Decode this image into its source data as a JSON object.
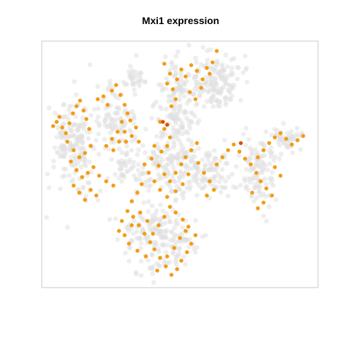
{
  "chart_data": {
    "type": "scatter",
    "title": "Mxi1 expression",
    "xlabel": "",
    "ylabel": "",
    "axes_visible": false,
    "grid": false,
    "legend": "none",
    "colors": {
      "background_cells": "#e0e0e0",
      "expressing_cells": "#f39c12",
      "high_expressing_cells": "#d35400",
      "frame": "#c8c8c8"
    },
    "expressing_points": [
      [
        75,
        178
      ],
      [
        80,
        172
      ],
      [
        84,
        165
      ],
      [
        88,
        180
      ],
      [
        93,
        188
      ],
      [
        98,
        174
      ],
      [
        103,
        160
      ],
      [
        108,
        150
      ],
      [
        113,
        142
      ],
      [
        118,
        156
      ],
      [
        122,
        168
      ],
      [
        126,
        182
      ],
      [
        95,
        200
      ],
      [
        104,
        212
      ],
      [
        112,
        222
      ],
      [
        120,
        216
      ],
      [
        128,
        206
      ],
      [
        100,
        228
      ],
      [
        108,
        240
      ],
      [
        116,
        250
      ],
      [
        124,
        244
      ],
      [
        132,
        236
      ],
      [
        140,
        248
      ],
      [
        150,
        256
      ],
      [
        160,
        262
      ],
      [
        104,
        262
      ],
      [
        112,
        272
      ],
      [
        120,
        282
      ],
      [
        128,
        268
      ],
      [
        136,
        276
      ],
      [
        138,
        140
      ],
      [
        146,
        136
      ],
      [
        152,
        148
      ],
      [
        158,
        128
      ],
      [
        164,
        120
      ],
      [
        170,
        134
      ],
      [
        176,
        148
      ],
      [
        180,
        160
      ],
      [
        172,
        172
      ],
      [
        166,
        186
      ],
      [
        158,
        196
      ],
      [
        150,
        206
      ],
      [
        160,
        212
      ],
      [
        178,
        200
      ],
      [
        186,
        192
      ],
      [
        192,
        180
      ],
      [
        184,
        170
      ],
      [
        176,
        186
      ],
      [
        168,
        200
      ],
      [
        196,
        200
      ],
      [
        232,
        90
      ],
      [
        240,
        104
      ],
      [
        236,
        118
      ],
      [
        244,
        126
      ],
      [
        250,
        112
      ],
      [
        256,
        98
      ],
      [
        262,
        108
      ],
      [
        270,
        92
      ],
      [
        278,
        100
      ],
      [
        286,
        112
      ],
      [
        292,
        96
      ],
      [
        300,
        88
      ],
      [
        306,
        72
      ],
      [
        296,
        104
      ],
      [
        284,
        124
      ],
      [
        276,
        140
      ],
      [
        268,
        130
      ],
      [
        248,
        140
      ],
      [
        242,
        150
      ],
      [
        226,
        172
      ],
      [
        232,
        182
      ],
      [
        240,
        194
      ],
      [
        236,
        206
      ],
      [
        228,
        214
      ],
      [
        218,
        206
      ],
      [
        214,
        224
      ],
      [
        224,
        234
      ],
      [
        232,
        246
      ],
      [
        240,
        256
      ],
      [
        248,
        244
      ],
      [
        256,
        232
      ],
      [
        262,
        222
      ],
      [
        270,
        212
      ],
      [
        278,
        202
      ],
      [
        266,
        246
      ],
      [
        258,
        260
      ],
      [
        248,
        270
      ],
      [
        236,
        278
      ],
      [
        226,
        268
      ],
      [
        218,
        256
      ],
      [
        210,
        244
      ],
      [
        204,
        232
      ],
      [
        200,
        260
      ],
      [
        194,
        272
      ],
      [
        186,
        284
      ],
      [
        280,
        230
      ],
      [
        288,
        244
      ],
      [
        296,
        256
      ],
      [
        302,
        268
      ],
      [
        292,
        276
      ],
      [
        306,
        232
      ],
      [
        314,
        222
      ],
      [
        322,
        212
      ],
      [
        330,
        204
      ],
      [
        338,
        214
      ],
      [
        346,
        224
      ],
      [
        354,
        232
      ],
      [
        362,
        244
      ],
      [
        368,
        256
      ],
      [
        376,
        266
      ],
      [
        384,
        276
      ],
      [
        372,
        286
      ],
      [
        364,
        294
      ],
      [
        356,
        272
      ],
      [
        364,
        222
      ],
      [
        372,
        212
      ],
      [
        380,
        202
      ],
      [
        388,
        194
      ],
      [
        396,
        188
      ],
      [
        404,
        196
      ],
      [
        412,
        204
      ],
      [
        420,
        198
      ],
      [
        428,
        192
      ],
      [
        388,
        236
      ],
      [
        396,
        248
      ],
      [
        180,
        298
      ],
      [
        188,
        306
      ],
      [
        196,
        318
      ],
      [
        204,
        330
      ],
      [
        212,
        342
      ],
      [
        218,
        352
      ],
      [
        226,
        364
      ],
      [
        234,
        376
      ],
      [
        242,
        388
      ],
      [
        250,
        380
      ],
      [
        256,
        368
      ],
      [
        264,
        356
      ],
      [
        270,
        344
      ],
      [
        276,
        332
      ],
      [
        266,
        320
      ],
      [
        258,
        310
      ],
      [
        248,
        300
      ],
      [
        240,
        292
      ],
      [
        232,
        306
      ],
      [
        224,
        318
      ],
      [
        216,
        330
      ],
      [
        208,
        312
      ],
      [
        198,
        300
      ],
      [
        186,
        318
      ],
      [
        176,
        332
      ],
      [
        168,
        326
      ],
      [
        172,
        312
      ],
      [
        182,
        344
      ],
      [
        194,
        354
      ],
      [
        206,
        362
      ],
      [
        222,
        382
      ],
      [
        236,
        362
      ],
      [
        246,
        350
      ],
      [
        254,
        336
      ],
      [
        262,
        326
      ]
    ],
    "high_points": [
      [
        230,
        172
      ],
      [
        236,
        176
      ],
      [
        340,
        202
      ]
    ]
  }
}
